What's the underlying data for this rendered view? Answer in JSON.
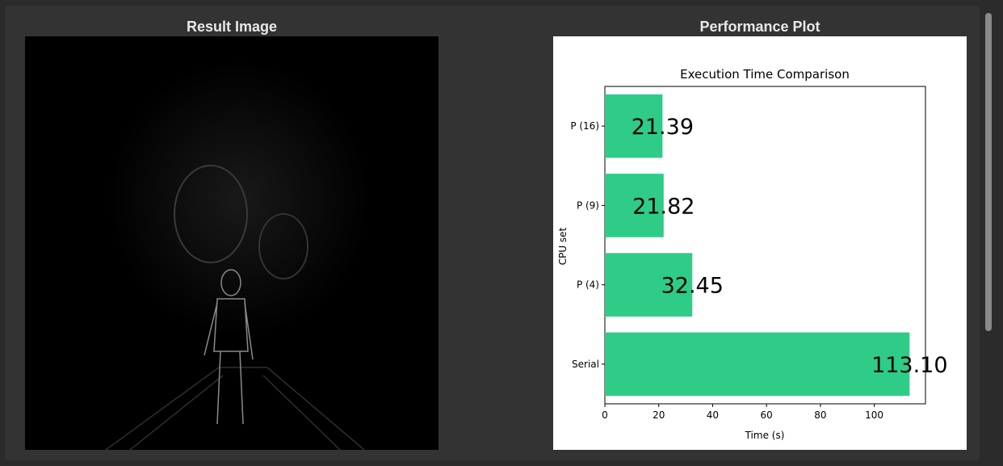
{
  "panels": {
    "left_title": "Result Image",
    "right_title": "Performance Plot"
  },
  "result_image": {
    "description_icon": "image-panel"
  },
  "chart_data": {
    "type": "bar",
    "orientation": "horizontal",
    "title": "Execution Time Comparison",
    "xlabel": "Time (s)",
    "ylabel": "CPU set",
    "categories": [
      "Serial",
      "P (4)",
      "P (9)",
      "P (16)"
    ],
    "values": [
      113.1,
      32.45,
      21.82,
      21.39
    ],
    "value_labels": [
      "113.10",
      "32.45",
      "21.82",
      "21.39"
    ],
    "xlim": [
      0,
      119
    ],
    "xticks": [
      0,
      20,
      40,
      60,
      80,
      100
    ],
    "bar_color": "#2ecc87",
    "grid": false
  },
  "colors": {
    "background": "#2b2b2b",
    "panel": "#333333",
    "bar": "#2ecc87"
  }
}
